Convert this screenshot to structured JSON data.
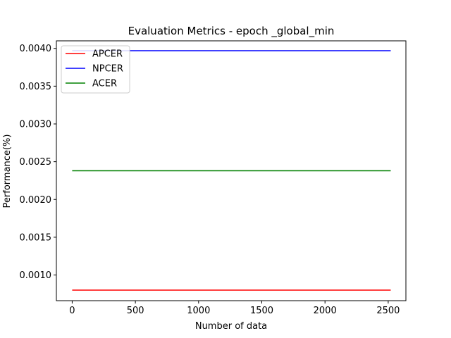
{
  "chart_data": {
    "type": "line",
    "title": "Evaluation Metrics - epoch _global_min",
    "xlabel": "Number of data",
    "ylabel": "Performance(%)",
    "xlim": [
      -125,
      2640
    ],
    "ylim": [
      0.00066,
      0.0041
    ],
    "xticks": [
      0,
      500,
      1000,
      1500,
      2000,
      2500
    ],
    "xtick_labels": [
      "0",
      "500",
      "1000",
      "1500",
      "2000",
      "2500"
    ],
    "yticks": [
      0.001,
      0.0015,
      0.002,
      0.0025,
      0.003,
      0.0035,
      0.004
    ],
    "ytick_labels": [
      "0.0010",
      "0.0015",
      "0.0020",
      "0.0025",
      "0.0030",
      "0.0035",
      "0.0040"
    ],
    "grid": false,
    "legend_position": "upper-left",
    "series": [
      {
        "name": "APCER",
        "color": "#ff0000",
        "x": [
          0,
          2520
        ],
        "values": [
          0.0008,
          0.0008
        ]
      },
      {
        "name": "NPCER",
        "color": "#0000ff",
        "x": [
          0,
          2520
        ],
        "values": [
          0.00397,
          0.00397
        ]
      },
      {
        "name": "ACER",
        "color": "#008000",
        "x": [
          0,
          2520
        ],
        "values": [
          0.00238,
          0.00238
        ]
      }
    ]
  }
}
